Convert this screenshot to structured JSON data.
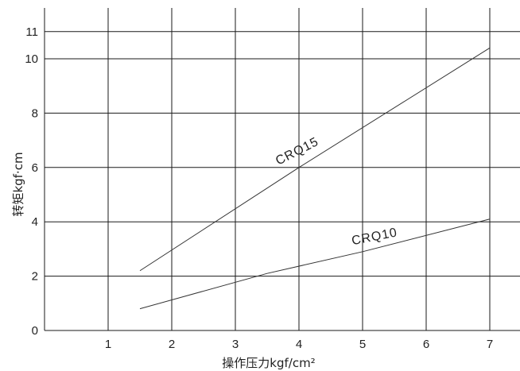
{
  "chart_data": {
    "type": "line",
    "xlabel": "操作压力kgf/cm²",
    "ylabel": "转矩kgf·cm",
    "xlim": [
      0,
      7.5
    ],
    "ylim": [
      0,
      11
    ],
    "x_ticks": [
      "1",
      "2",
      "3",
      "4",
      "5",
      "6",
      "7"
    ],
    "y_ticks": [
      "0",
      "2",
      "4",
      "6",
      "8",
      "10",
      "11"
    ],
    "grid": true,
    "series": [
      {
        "name": "CRQ15",
        "x": [
          1.5,
          4,
          7
        ],
        "y": [
          2.2,
          6,
          10.4
        ]
      },
      {
        "name": "CRQ10",
        "x": [
          1.5,
          3.5,
          5,
          7
        ],
        "y": [
          0.8,
          2.1,
          2.9,
          4.1
        ]
      }
    ]
  }
}
